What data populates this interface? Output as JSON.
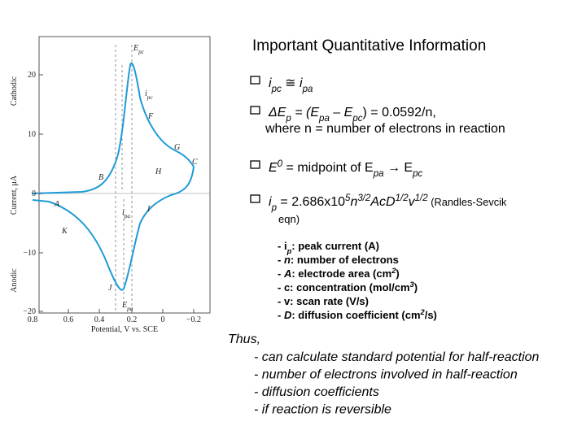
{
  "title": "Important Quantitative Information",
  "bullets": [
    {
      "parts": [
        "i",
        "pc",
        " ≅ ",
        "i",
        "pa"
      ]
    },
    {
      "parts": [
        "ΔE",
        "p",
        " = (E",
        "pa",
        " – E",
        "pc",
        ") = 0.0592/n,"
      ],
      "line2": "where n = number of electrons in reaction"
    },
    {
      "parts": [
        "E",
        "0",
        " = midpoint of E",
        "pa",
        " → E",
        "pc"
      ]
    },
    {
      "parts": [
        "i",
        "p",
        " = 2.686x10",
        "5",
        "n",
        "3/2",
        "AcD",
        "1/2",
        "v",
        "1/2",
        " (Randles-Sevcik"
      ],
      "line2": "eqn)"
    }
  ],
  "definitions": [
    [
      "- i",
      "p",
      ": peak current (A)"
    ],
    [
      "- ",
      "n",
      ": number of electrons"
    ],
    [
      "- ",
      "A",
      ": electrode area (cm",
      "2",
      ")"
    ],
    [
      "- c: concentration (mol/cm",
      "3",
      ")"
    ],
    [
      "- v: scan rate (V/s)"
    ],
    [
      "- ",
      "D",
      ": diffusion coefficient (cm",
      "2",
      "/s)"
    ]
  ],
  "conclusion": {
    "lead": "Thus,",
    "items": [
      "- can calculate standard potential for half-reaction",
      "- number of electrons involved in half-reaction",
      "- diffusion coefficients",
      "- if reaction is reversible"
    ]
  },
  "figure": {
    "y_labels": [
      "Cathodic",
      "Current, μA",
      "Anodic"
    ],
    "x_label": "Potential, V vs. SCE",
    "yticks": [
      "20",
      "10",
      "0",
      "−10",
      "−20"
    ],
    "xticks": [
      "0.8",
      "0.6",
      "0.4",
      "0.2",
      "0",
      "−0.2"
    ],
    "annotations": [
      [
        "E",
        "pc"
      ],
      [
        "F"
      ],
      [
        "G"
      ],
      [
        "C"
      ],
      [
        "H"
      ],
      [
        "B"
      ],
      [
        "A"
      ],
      [
        "i",
        "pa"
      ],
      [
        "I"
      ],
      [
        "K"
      ],
      [
        "J"
      ],
      [
        "E",
        "pa"
      ],
      [
        "i",
        "pc"
      ]
    ]
  }
}
